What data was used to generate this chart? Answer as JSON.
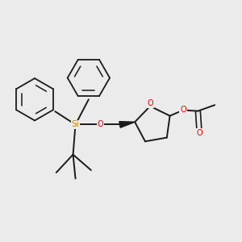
{
  "background_color": "#ebebeb",
  "bond_color": "#1a1a1a",
  "oxygen_color": "#ff0000",
  "silicon_color": "#cc8800",
  "figsize": [
    3.0,
    3.0
  ],
  "dpi": 100,
  "xlim": [
    0,
    10
  ],
  "ylim": [
    0,
    10
  ]
}
